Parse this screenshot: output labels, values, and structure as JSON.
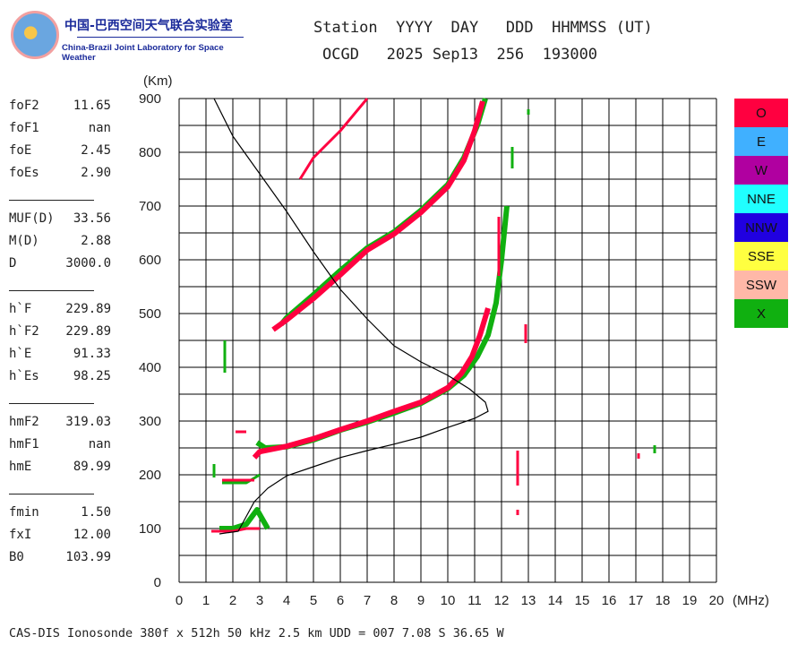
{
  "logo": {
    "chinese": "中国-巴西空间天气联合实验室",
    "english": "China-Brazil Joint Laboratory for Space Weather"
  },
  "header": {
    "line1": "Station  YYYY  DAY   DDD  HHMMSS (UT)",
    "line2": "OCGD   2025 Sep13  256  193000"
  },
  "params": [
    [
      {
        "k": "foF2",
        "v": "11.65"
      },
      {
        "k": "foF1",
        "v": "nan"
      },
      {
        "k": "foE",
        "v": "2.45"
      },
      {
        "k": "foEs",
        "v": "2.90"
      }
    ],
    [
      {
        "k": "MUF(D)",
        "v": "33.56"
      },
      {
        "k": "M(D)",
        "v": "2.88"
      },
      {
        "k": "D",
        "v": "3000.0"
      }
    ],
    [
      {
        "k": "h`F",
        "v": "229.89"
      },
      {
        "k": "h`F2",
        "v": "229.89"
      },
      {
        "k": "h`E",
        "v": "91.33"
      },
      {
        "k": "h`Es",
        "v": "98.25"
      }
    ],
    [
      {
        "k": "hmF2",
        "v": "319.03"
      },
      {
        "k": "hmF1",
        "v": "nan"
      },
      {
        "k": "hmE",
        "v": "89.99"
      }
    ],
    [
      {
        "k": "fmin",
        "v": "1.50"
      },
      {
        "k": "fxI",
        "v": "12.00"
      },
      {
        "k": "B0",
        "v": "103.99"
      }
    ]
  ],
  "legend": [
    {
      "label": "O",
      "color": "#ff0040"
    },
    {
      "label": "E",
      "color": "#40b0ff"
    },
    {
      "label": "W",
      "color": "#b000a0"
    },
    {
      "label": "NNE",
      "color": "#20ffff"
    },
    {
      "label": "NNW",
      "color": "#2000e0"
    },
    {
      "label": "SSE",
      "color": "#ffff40"
    },
    {
      "label": "SSW",
      "color": "#ffb8a8"
    },
    {
      "label": "X",
      "color": "#10b010"
    }
  ],
  "footer": "CAS-DIS Ionosonde 380f x 512h 50 kHz 2.5 km UDD = 007 7.08 S 36.65 W",
  "chart_data": {
    "type": "scatter",
    "xlabel": "(MHz)",
    "ylabel": "(Km)",
    "xlim": [
      0,
      20
    ],
    "ylim": [
      0,
      900
    ],
    "xticks": [
      0,
      1,
      2,
      3,
      4,
      5,
      6,
      7,
      8,
      9,
      10,
      11,
      12,
      13,
      14,
      15,
      16,
      17,
      18,
      19,
      20
    ],
    "yticks": [
      0,
      100,
      200,
      300,
      400,
      500,
      600,
      700,
      800,
      900
    ],
    "grid": true,
    "series": [
      {
        "name": "X",
        "color": "#10b010",
        "segments": [
          [
            [
              2.9,
              260
            ],
            [
              3.2,
              250
            ],
            [
              4,
              252
            ],
            [
              5,
              265
            ],
            [
              6,
              283
            ],
            [
              7,
              298
            ],
            [
              8,
              315
            ],
            [
              9,
              333
            ],
            [
              10,
              360
            ],
            [
              10.6,
              385
            ],
            [
              11.1,
              420
            ],
            [
              11.5,
              460
            ],
            [
              11.8,
              520
            ],
            [
              12.0,
              600
            ],
            [
              12.2,
              700
            ]
          ],
          [
            [
              3.8,
              480
            ],
            [
              4,
              492
            ],
            [
              5,
              535
            ],
            [
              6,
              580
            ],
            [
              7,
              622
            ],
            [
              8,
              652
            ],
            [
              9,
              692
            ],
            [
              10,
              740
            ],
            [
              10.6,
              790
            ],
            [
              11.1,
              850
            ],
            [
              11.4,
              900
            ]
          ],
          [
            [
              1.5,
              100
            ],
            [
              2,
              100
            ],
            [
              2.5,
              108
            ],
            [
              2.9,
              135
            ],
            [
              3.3,
              100
            ]
          ],
          [
            [
              1.6,
              185
            ],
            [
              2.5,
              185
            ],
            [
              3,
              200
            ]
          ],
          [
            [
              12.4,
              770
            ],
            [
              12.4,
              810
            ]
          ],
          [
            [
              1.3,
              195
            ],
            [
              1.3,
              220
            ]
          ],
          [
            [
              1.7,
              390
            ],
            [
              1.7,
              450
            ]
          ],
          [
            [
              17.7,
              240
            ],
            [
              17.7,
              255
            ]
          ],
          [
            [
              13,
              870
            ],
            [
              13,
              880
            ]
          ]
        ]
      },
      {
        "name": "O",
        "color": "#ff0040",
        "segments": [
          [
            [
              2.8,
              232
            ],
            [
              3,
              243
            ],
            [
              4,
              253
            ],
            [
              5,
              267
            ],
            [
              6,
              284
            ],
            [
              7,
              300
            ],
            [
              8,
              318
            ],
            [
              9,
              335
            ],
            [
              10,
              362
            ],
            [
              10.5,
              388
            ],
            [
              10.9,
              420
            ],
            [
              11.2,
              460
            ],
            [
              11.5,
              510
            ]
          ],
          [
            [
              3.5,
              470
            ],
            [
              4,
              488
            ],
            [
              5,
              528
            ],
            [
              6,
              572
            ],
            [
              7,
              618
            ],
            [
              8,
              648
            ],
            [
              9,
              688
            ],
            [
              10,
              736
            ],
            [
              10.6,
              785
            ],
            [
              11,
              840
            ],
            [
              11.3,
              895
            ]
          ],
          [
            [
              4.5,
              750
            ],
            [
              5,
              790
            ],
            [
              6,
              840
            ],
            [
              7,
              900
            ]
          ],
          [
            [
              1.2,
              95
            ],
            [
              2,
              95
            ],
            [
              2.5,
              100
            ],
            [
              3,
              100
            ]
          ],
          [
            [
              1.6,
              190
            ],
            [
              2.8,
              190
            ]
          ],
          [
            [
              2.1,
              280
            ],
            [
              2.5,
              280
            ]
          ],
          [
            [
              11.9,
              570
            ],
            [
              11.9,
              680
            ]
          ],
          [
            [
              12.6,
              180
            ],
            [
              12.6,
              245
            ]
          ],
          [
            [
              12.9,
              445
            ],
            [
              12.9,
              480
            ]
          ],
          [
            [
              17.1,
              230
            ],
            [
              17.1,
              240
            ]
          ],
          [
            [
              12.6,
              125
            ],
            [
              12.6,
              135
            ]
          ]
        ]
      },
      {
        "name": "profile",
        "color": "#000000",
        "segments": [
          [
            [
              1.5,
              90
            ],
            [
              2.2,
              95
            ],
            [
              2.8,
              150
            ],
            [
              3.3,
              175
            ],
            [
              4,
              198
            ],
            [
              5,
              215
            ],
            [
              6,
              232
            ],
            [
              7,
              245
            ],
            [
              8,
              257
            ],
            [
              9,
              270
            ],
            [
              10,
              288
            ],
            [
              11,
              305
            ],
            [
              11.5,
              318
            ],
            [
              11.4,
              335
            ],
            [
              10.8,
              360
            ],
            [
              10,
              385
            ],
            [
              9,
              410
            ],
            [
              8,
              440
            ],
            [
              7,
              490
            ],
            [
              6,
              545
            ],
            [
              5,
              615
            ],
            [
              4,
              690
            ],
            [
              3,
              760
            ],
            [
              2,
              830
            ],
            [
              1.3,
              900
            ]
          ]
        ]
      }
    ]
  }
}
